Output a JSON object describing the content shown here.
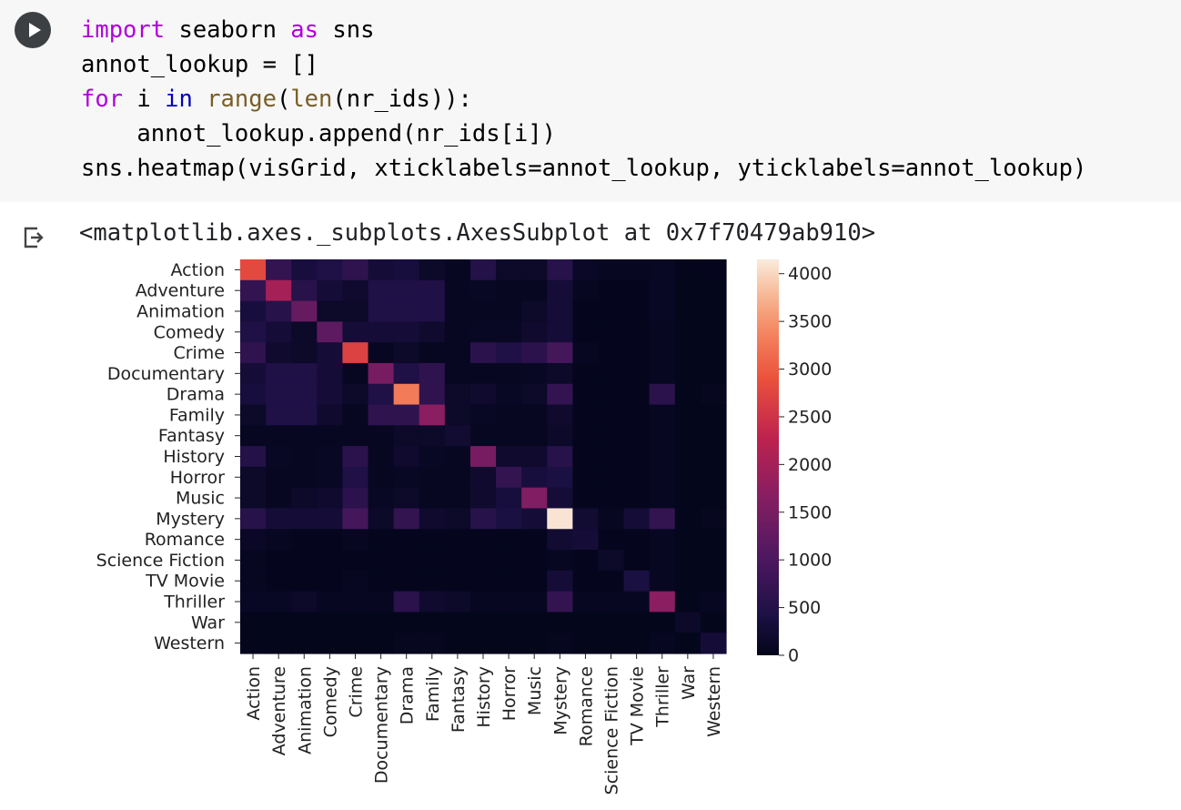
{
  "code_cell": {
    "lines": [
      [
        {
          "t": "import",
          "c": "kw"
        },
        {
          "t": " seaborn ",
          "c": ""
        },
        {
          "t": "as",
          "c": "kw"
        },
        {
          "t": " sns",
          "c": ""
        }
      ],
      [
        {
          "t": "annot_lookup = []",
          "c": ""
        }
      ],
      [
        {
          "t": "for",
          "c": "kw"
        },
        {
          "t": " i ",
          "c": ""
        },
        {
          "t": "in",
          "c": "bi"
        },
        {
          "t": " ",
          "c": ""
        },
        {
          "t": "range",
          "c": "fn"
        },
        {
          "t": "(",
          "c": ""
        },
        {
          "t": "len",
          "c": "fn"
        },
        {
          "t": "(nr_ids)):",
          "c": ""
        }
      ],
      [
        {
          "t": "    annot_lookup.append(nr_ids[i])",
          "c": ""
        }
      ],
      [
        {
          "t": "sns.heatmap(visGrid, xticklabels=annot_lookup, yticklabels=annot_lookup)",
          "c": ""
        }
      ]
    ]
  },
  "output": {
    "text": "<matplotlib.axes._subplots.AxesSubplot at 0x7f70479ab910>"
  },
  "chart_data": {
    "type": "heatmap",
    "labels": [
      "Action",
      "Adventure",
      "Animation",
      "Comedy",
      "Crime",
      "Documentary",
      "Drama",
      "Family",
      "Fantasy",
      "History",
      "Horror",
      "Music",
      "Mystery",
      "Romance",
      "Science Fiction",
      "TV Movie",
      "Thriller",
      "War",
      "Western"
    ],
    "values": [
      [
        2800,
        700,
        350,
        450,
        650,
        300,
        350,
        150,
        80,
        500,
        150,
        150,
        550,
        120,
        80,
        80,
        100,
        30,
        30
      ],
      [
        700,
        2000,
        550,
        300,
        200,
        450,
        450,
        450,
        80,
        100,
        80,
        80,
        300,
        80,
        40,
        40,
        100,
        20,
        20
      ],
      [
        350,
        550,
        1300,
        150,
        150,
        450,
        450,
        450,
        80,
        80,
        80,
        150,
        300,
        40,
        40,
        40,
        100,
        20,
        20
      ],
      [
        450,
        300,
        150,
        1200,
        300,
        300,
        300,
        200,
        80,
        100,
        100,
        200,
        300,
        40,
        40,
        40,
        80,
        20,
        20
      ],
      [
        650,
        200,
        150,
        300,
        2700,
        80,
        150,
        80,
        80,
        600,
        450,
        600,
        900,
        80,
        40,
        40,
        80,
        20,
        20
      ],
      [
        300,
        450,
        450,
        300,
        80,
        1500,
        450,
        650,
        80,
        80,
        80,
        100,
        150,
        40,
        40,
        40,
        80,
        20,
        20
      ],
      [
        350,
        450,
        450,
        300,
        150,
        450,
        3300,
        650,
        150,
        200,
        100,
        150,
        700,
        40,
        40,
        40,
        600,
        20,
        60
      ],
      [
        150,
        450,
        450,
        200,
        80,
        650,
        650,
        1700,
        150,
        100,
        80,
        80,
        200,
        40,
        40,
        40,
        80,
        20,
        20
      ],
      [
        80,
        80,
        80,
        80,
        80,
        80,
        150,
        150,
        250,
        80,
        80,
        80,
        150,
        40,
        40,
        40,
        80,
        20,
        20
      ],
      [
        500,
        100,
        80,
        100,
        600,
        80,
        200,
        100,
        80,
        1500,
        200,
        200,
        550,
        40,
        40,
        40,
        80,
        20,
        20
      ],
      [
        150,
        80,
        80,
        100,
        450,
        80,
        100,
        80,
        80,
        200,
        700,
        350,
        400,
        40,
        40,
        40,
        80,
        20,
        20
      ],
      [
        150,
        80,
        150,
        200,
        600,
        100,
        150,
        80,
        80,
        200,
        350,
        1600,
        300,
        40,
        40,
        40,
        80,
        20,
        20
      ],
      [
        550,
        300,
        300,
        300,
        900,
        150,
        700,
        200,
        150,
        550,
        400,
        300,
        4100,
        250,
        80,
        300,
        700,
        20,
        60
      ],
      [
        120,
        80,
        40,
        40,
        80,
        40,
        40,
        40,
        40,
        40,
        40,
        40,
        250,
        300,
        40,
        40,
        80,
        20,
        20
      ],
      [
        80,
        40,
        40,
        40,
        40,
        40,
        40,
        40,
        40,
        40,
        40,
        40,
        80,
        40,
        150,
        40,
        80,
        20,
        20
      ],
      [
        80,
        40,
        40,
        40,
        80,
        40,
        40,
        40,
        40,
        40,
        40,
        40,
        300,
        40,
        40,
        400,
        80,
        20,
        20
      ],
      [
        100,
        100,
        150,
        80,
        80,
        80,
        600,
        200,
        150,
        80,
        80,
        80,
        700,
        80,
        80,
        80,
        1700,
        20,
        80
      ],
      [
        30,
        20,
        20,
        20,
        20,
        20,
        20,
        20,
        20,
        20,
        20,
        20,
        20,
        20,
        20,
        20,
        20,
        150,
        20
      ],
      [
        30,
        20,
        20,
        20,
        20,
        20,
        60,
        60,
        20,
        20,
        20,
        20,
        60,
        20,
        20,
        20,
        80,
        20,
        300
      ]
    ],
    "colorbar": {
      "min": 0,
      "max": 4150,
      "ticks": [
        "0",
        "500",
        "1000",
        "1500",
        "2000",
        "2500",
        "3000",
        "3500",
        "4000"
      ]
    },
    "colormap": "rocket"
  }
}
